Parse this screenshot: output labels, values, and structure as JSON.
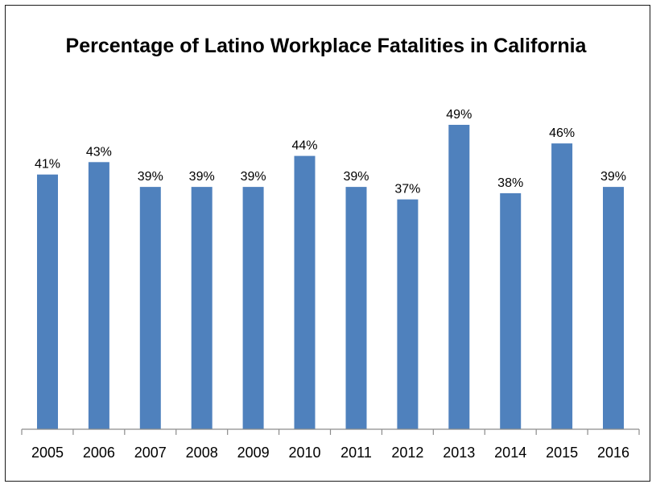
{
  "chart_data": {
    "type": "bar",
    "title": "Percentage of Latino Workplace Fatalities in California",
    "xlabel": "",
    "ylabel": "",
    "categories": [
      "2005",
      "2006",
      "2007",
      "2008",
      "2009",
      "2010",
      "2011",
      "2012",
      "2013",
      "2014",
      "2015",
      "2016"
    ],
    "values": [
      41,
      43,
      39,
      39,
      39,
      44,
      39,
      37,
      49,
      38,
      46,
      39
    ],
    "data_labels": [
      "41%",
      "43%",
      "39%",
      "39%",
      "39%",
      "44%",
      "39%",
      "37%",
      "49%",
      "38%",
      "46%",
      "39%"
    ],
    "ylim": [
      0,
      49
    ],
    "grid": false,
    "legend": "none",
    "bar_color": "#4f81bd"
  }
}
